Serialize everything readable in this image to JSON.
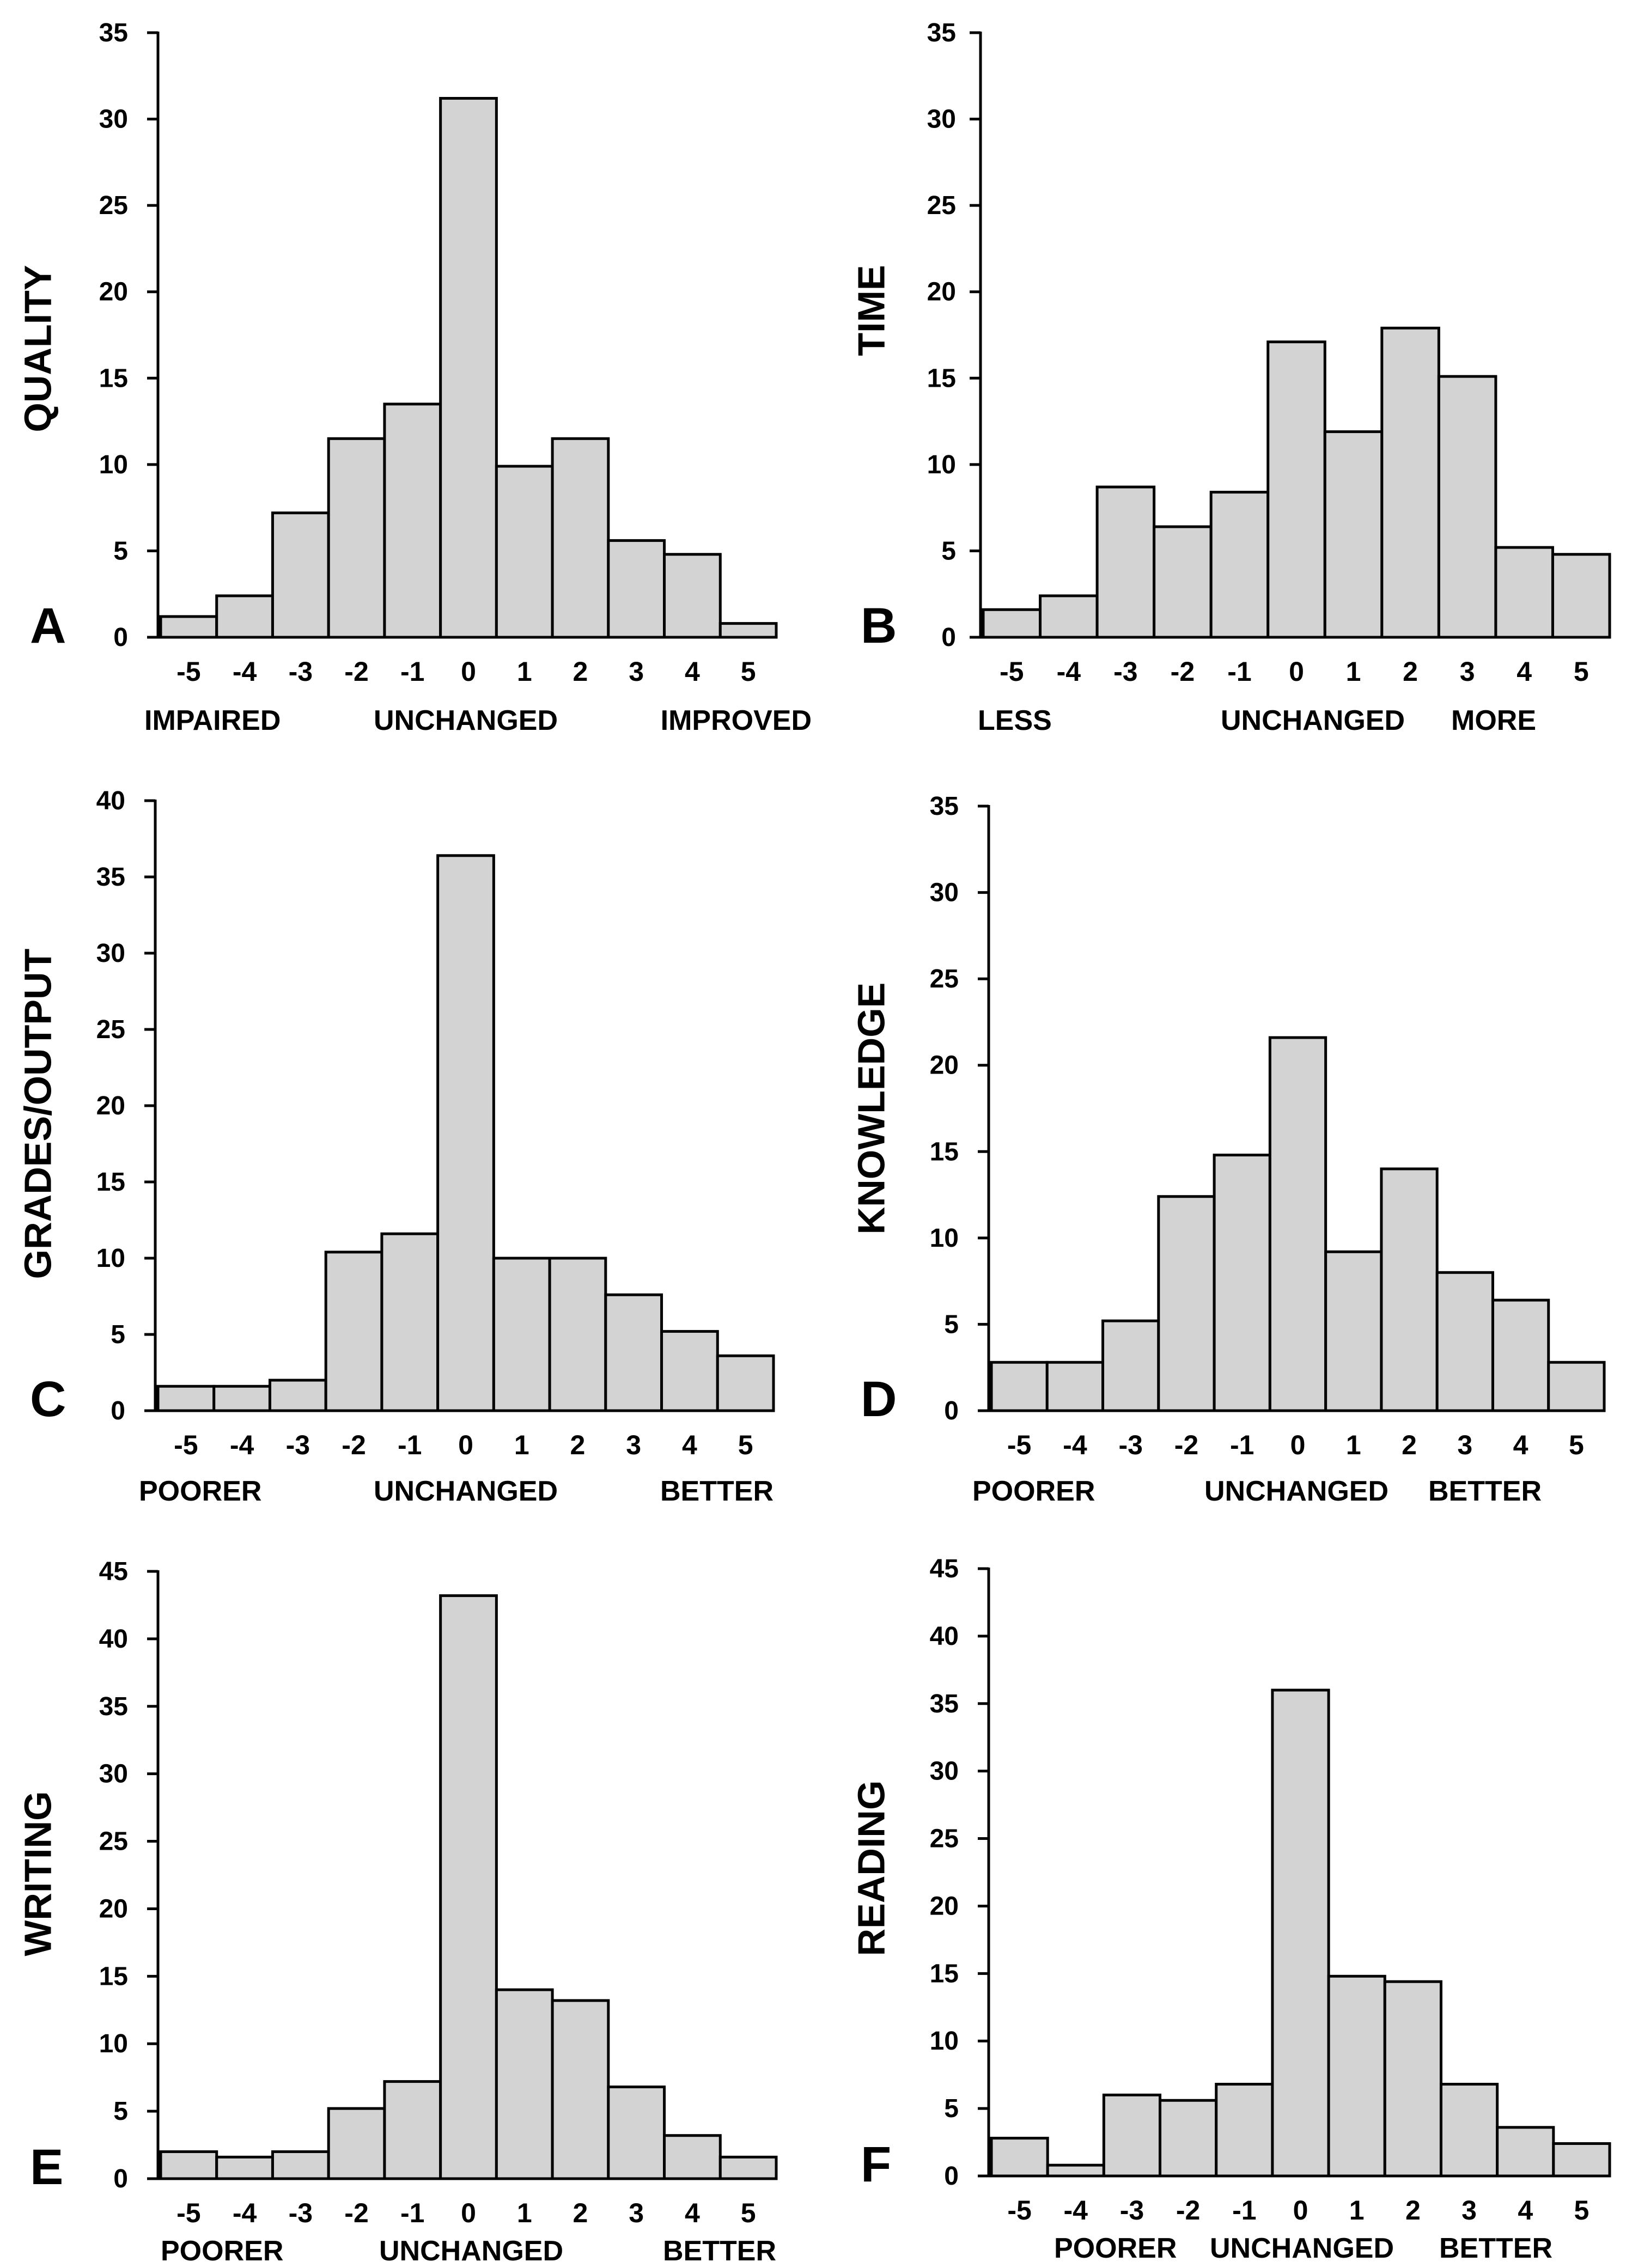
{
  "colors": {
    "bar_fill": "#d3d3d3",
    "bar_stroke": "#000000",
    "axis": "#000000",
    "background": "#ffffff"
  },
  "chart_data": [
    {
      "type": "bar",
      "panel_letter": "A",
      "ylabel": "QUALITY",
      "xlabel": "",
      "categories": [
        "-5",
        "-4",
        "-3",
        "-2",
        "-1",
        "0",
        "1",
        "2",
        "3",
        "4",
        "5"
      ],
      "values": [
        1.2,
        2.4,
        7.2,
        11.5,
        13.5,
        31.2,
        9.9,
        11.5,
        5.6,
        4.8,
        0.8
      ],
      "ylim": [
        0,
        35
      ],
      "yticks": [
        0,
        5,
        10,
        15,
        20,
        25,
        30,
        35
      ],
      "scale_labels": {
        "left": "IMPAIRED",
        "center": "UNCHANGED",
        "right": "IMPROVED"
      }
    },
    {
      "type": "bar",
      "panel_letter": "B",
      "ylabel": "TIME",
      "xlabel": "",
      "categories": [
        "-5",
        "-4",
        "-3",
        "-2",
        "-1",
        "0",
        "1",
        "2",
        "3",
        "4",
        "5"
      ],
      "values": [
        1.6,
        2.4,
        8.7,
        6.4,
        8.4,
        17.1,
        11.9,
        17.9,
        15.1,
        5.2,
        4.8
      ],
      "ylim": [
        0,
        35
      ],
      "yticks": [
        0,
        5,
        10,
        15,
        20,
        25,
        30,
        35
      ],
      "scale_labels": {
        "left": "LESS",
        "center": "UNCHANGED",
        "right": "MORE"
      }
    },
    {
      "type": "bar",
      "panel_letter": "C",
      "ylabel": "GRADES/OUTPUT",
      "xlabel": "",
      "categories": [
        "-5",
        "-4",
        "-3",
        "-2",
        "-1",
        "0",
        "1",
        "2",
        "3",
        "4",
        "5"
      ],
      "values": [
        1.6,
        1.6,
        2.0,
        10.4,
        11.6,
        36.4,
        10.0,
        10.0,
        7.6,
        5.2,
        3.6
      ],
      "ylim": [
        0,
        40
      ],
      "yticks": [
        0,
        5,
        10,
        15,
        20,
        25,
        30,
        35,
        40
      ],
      "scale_labels": {
        "left": "POORER",
        "center": "UNCHANGED",
        "right": "BETTER"
      }
    },
    {
      "type": "bar",
      "panel_letter": "D",
      "ylabel": "KNOWLEDGE",
      "xlabel": "",
      "categories": [
        "-5",
        "-4",
        "-3",
        "-2",
        "-1",
        "0",
        "1",
        "2",
        "3",
        "4",
        "5"
      ],
      "values": [
        2.8,
        2.8,
        5.2,
        12.4,
        14.8,
        21.6,
        9.2,
        14.0,
        8.0,
        6.4,
        2.8
      ],
      "ylim": [
        0,
        35
      ],
      "yticks": [
        0,
        5,
        10,
        15,
        20,
        25,
        30,
        35
      ],
      "scale_labels": {
        "left": "POORER",
        "center": "UNCHANGED",
        "right": "BETTER"
      }
    },
    {
      "type": "bar",
      "panel_letter": "E",
      "ylabel": "WRITING",
      "xlabel": "",
      "categories": [
        "-5",
        "-4",
        "-3",
        "-2",
        "-1",
        "0",
        "1",
        "2",
        "3",
        "4",
        "5"
      ],
      "values": [
        2.0,
        1.6,
        2.0,
        5.2,
        7.2,
        43.2,
        14.0,
        13.2,
        6.8,
        3.2,
        1.6
      ],
      "ylim": [
        0,
        45
      ],
      "yticks": [
        0,
        5,
        10,
        15,
        20,
        25,
        30,
        35,
        40,
        45
      ],
      "scale_labels": {
        "left": "POORER",
        "center": "UNCHANGED",
        "right": "BETTER"
      }
    },
    {
      "type": "bar",
      "panel_letter": "F",
      "ylabel": "READING",
      "xlabel": "",
      "categories": [
        "-5",
        "-4",
        "-3",
        "-2",
        "-1",
        "0",
        "1",
        "2",
        "3",
        "4",
        "5"
      ],
      "values": [
        2.8,
        0.8,
        6.0,
        5.6,
        6.8,
        36.0,
        14.8,
        14.4,
        6.8,
        3.6,
        2.4
      ],
      "ylim": [
        0,
        45
      ],
      "yticks": [
        0,
        5,
        10,
        15,
        20,
        25,
        30,
        35,
        40,
        45
      ],
      "scale_labels": {
        "left": "POORER",
        "center": "UNCHANGED",
        "right": "BETTER"
      }
    }
  ]
}
